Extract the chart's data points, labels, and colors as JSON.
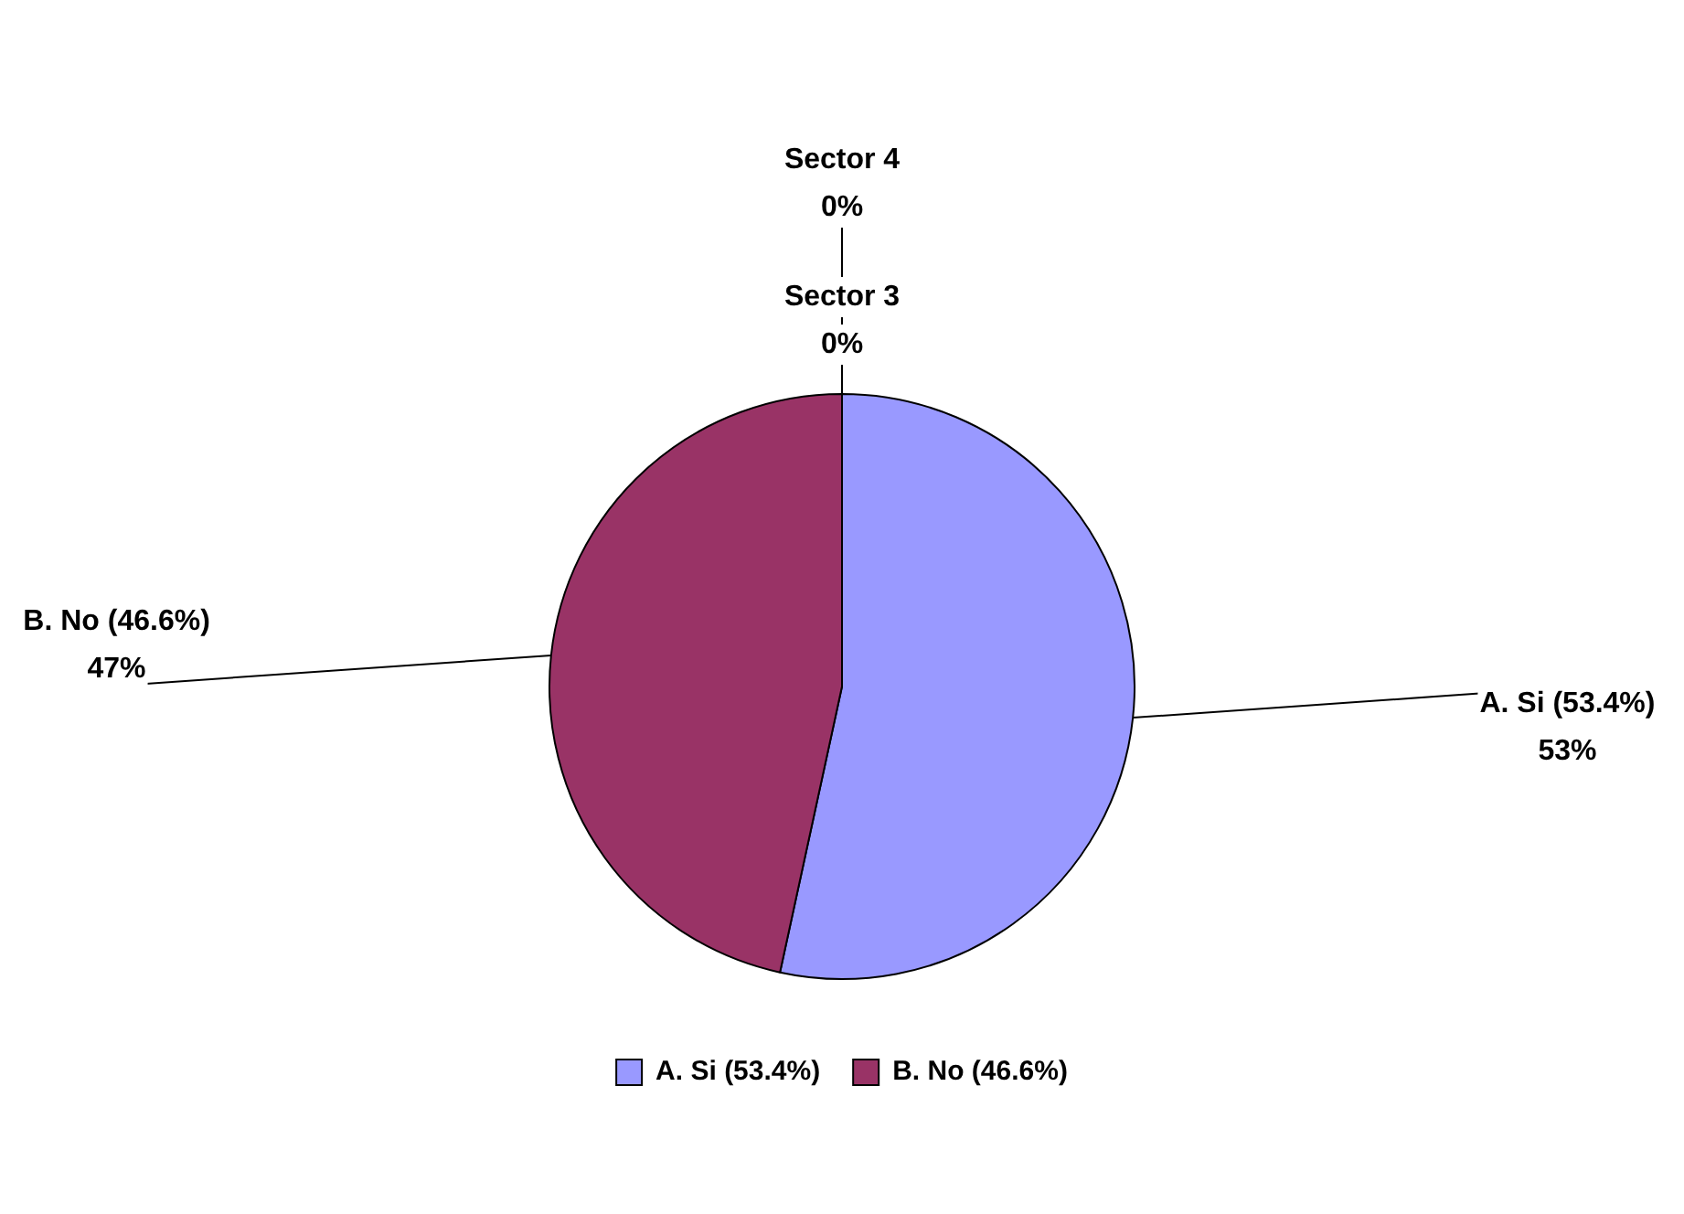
{
  "chart_data": {
    "type": "pie",
    "categories": [
      "A. Si (53.4%)",
      "B. No (46.6%)",
      "Sector 3",
      "Sector 4"
    ],
    "values": [
      53.4,
      46.6,
      0,
      0
    ],
    "colors": [
      "#9999ff",
      "#993366",
      "#ffffcc",
      "#ccffff"
    ],
    "value_labels": [
      "53%",
      "47%",
      "0%",
      "0%"
    ],
    "legend": "bottom"
  }
}
